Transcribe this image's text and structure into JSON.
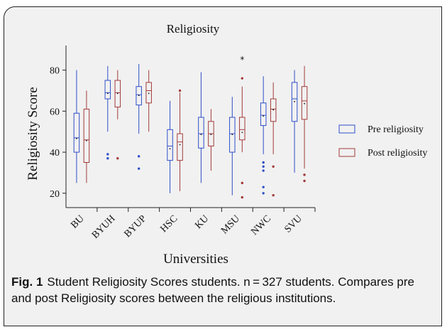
{
  "caption": {
    "label": "Fig. 1",
    "text": "Student Religiosity Scores students. n = 327 students. Compares pre and post Religiosity scores between the religious institutions."
  },
  "chart_data": {
    "type": "box",
    "title": "Religiosity",
    "xlabel": "Universities",
    "ylabel": "Religiosity Score",
    "ylim": [
      13,
      92
    ],
    "yticks": [
      20,
      40,
      60,
      80
    ],
    "categories": [
      "BU",
      "BYUH",
      "BYUP",
      "HSC",
      "KU",
      "MSU",
      "NWC",
      "SVU"
    ],
    "legend_position": "right",
    "series": [
      {
        "name": "Pre religiosity",
        "color": "#2f4fc9",
        "boxes": [
          {
            "min": 25,
            "q1": 40,
            "median": 47,
            "q3": 59,
            "max": 80,
            "mean": 47,
            "outliers": []
          },
          {
            "min": 50,
            "q1": 66,
            "median": 69,
            "q3": 75,
            "max": 82,
            "mean": 69,
            "outliers": [
              39,
              37
            ]
          },
          {
            "min": 49,
            "q1": 63,
            "median": 68,
            "q3": 72,
            "max": 83,
            "mean": 68,
            "outliers": [
              38,
              32
            ]
          },
          {
            "min": 20,
            "q1": 36,
            "median": 43,
            "q3": 51,
            "max": 65,
            "mean": 42,
            "outliers": []
          },
          {
            "min": 25,
            "q1": 42,
            "median": 49,
            "q3": 57,
            "max": 79,
            "mean": 49,
            "outliers": []
          },
          {
            "min": 19,
            "q1": 40,
            "median": 49,
            "q3": 57,
            "max": 67,
            "mean": 49,
            "outliers": []
          },
          {
            "min": 39,
            "q1": 53,
            "median": 58,
            "q3": 64,
            "max": 77,
            "mean": 58,
            "outliers": [
              35,
              33,
              31,
              23,
              20
            ]
          },
          {
            "min": 30,
            "q1": 55,
            "median": 66,
            "q3": 74,
            "max": 80,
            "mean": 65,
            "outliers": []
          }
        ]
      },
      {
        "name": "Post religiosity",
        "color": "#a33a3a",
        "boxes": [
          {
            "min": 25,
            "q1": 35,
            "median": 46,
            "q3": 61,
            "max": 70,
            "mean": 46,
            "outliers": []
          },
          {
            "min": 56,
            "q1": 62,
            "median": 69,
            "q3": 75,
            "max": 80,
            "mean": 69,
            "outliers": [
              37
            ]
          },
          {
            "min": 50,
            "q1": 64,
            "median": 70,
            "q3": 74,
            "max": 80,
            "mean": 69,
            "outliers": []
          },
          {
            "min": 21,
            "q1": 36,
            "median": 45,
            "q3": 49,
            "max": 69,
            "mean": 44,
            "outliers": [
              70
            ]
          },
          {
            "min": 31,
            "q1": 43,
            "median": 49,
            "q3": 55,
            "max": 61,
            "mean": 49,
            "outliers": []
          },
          {
            "min": 40,
            "q1": 46,
            "median": 51,
            "q3": 57,
            "max": 72,
            "mean": 50,
            "outliers": [
              85,
              76,
              25,
              18
            ]
          },
          {
            "min": 39,
            "q1": 55,
            "median": 61,
            "q3": 66,
            "max": 74,
            "mean": 61,
            "outliers": [
              33,
              19
            ]
          },
          {
            "min": 32,
            "q1": 56,
            "median": 65,
            "q3": 72,
            "max": 82,
            "mean": 64,
            "outliers": [
              29,
              26
            ]
          }
        ]
      }
    ]
  }
}
